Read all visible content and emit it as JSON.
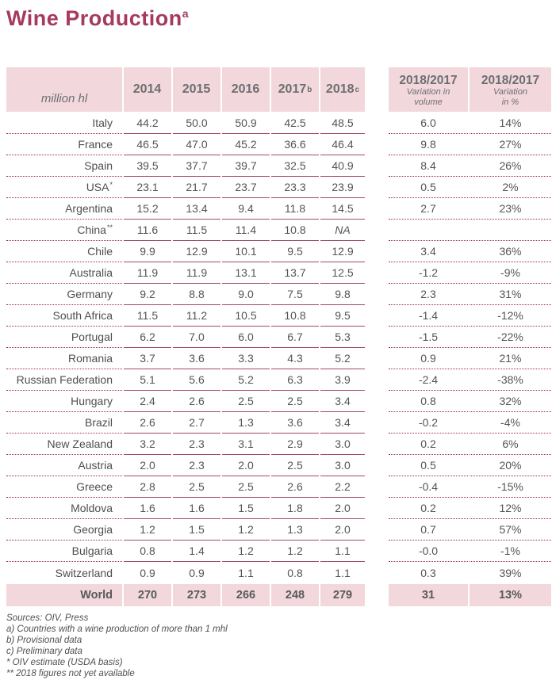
{
  "title": {
    "text": "Wine Production",
    "sup": "a"
  },
  "colors": {
    "accent": "#a53a5e",
    "header-bg": "#f2d8dd",
    "solid-line": "#a14a66",
    "dotted-line": "#9b2c55",
    "muted": "#6d6e71",
    "text": "#545456"
  },
  "table": {
    "unit_label": "million hl",
    "year_columns": [
      {
        "label": "2014",
        "sup": ""
      },
      {
        "label": "2015",
        "sup": ""
      },
      {
        "label": "2016",
        "sup": ""
      },
      {
        "label": "2017",
        "sup": "b"
      },
      {
        "label": "2018",
        "sup": "c"
      }
    ],
    "variation_columns": [
      {
        "l1": "2018/2017",
        "l2": "Variation in",
        "l3": "volume"
      },
      {
        "l1": "2018/2017",
        "l2": "Variation",
        "l3": "in %"
      }
    ],
    "rows": [
      {
        "country": "Italy",
        "sup": "",
        "values": [
          "44.2",
          "50.0",
          "50.9",
          "42.5",
          "48.5"
        ],
        "var_volume": "6.0",
        "var_pct": "14%"
      },
      {
        "country": "France",
        "sup": "",
        "values": [
          "46.5",
          "47.0",
          "45.2",
          "36.6",
          "46.4"
        ],
        "var_volume": "9.8",
        "var_pct": "27%"
      },
      {
        "country": "Spain",
        "sup": "",
        "values": [
          "39.5",
          "37.7",
          "39.7",
          "32.5",
          "40.9"
        ],
        "var_volume": "8.4",
        "var_pct": "26%"
      },
      {
        "country": "USA",
        "sup": "*",
        "values": [
          "23.1",
          "21.7",
          "23.7",
          "23.3",
          "23.9"
        ],
        "var_volume": "0.5",
        "var_pct": "2%"
      },
      {
        "country": "Argentina",
        "sup": "",
        "values": [
          "15.2",
          "13.4",
          "9.4",
          "11.8",
          "14.5"
        ],
        "var_volume": "2.7",
        "var_pct": "23%"
      },
      {
        "country": "China",
        "sup": "**",
        "values": [
          "11.6",
          "11.5",
          "11.4",
          "10.8",
          "NA"
        ],
        "var_volume": "",
        "var_pct": ""
      },
      {
        "country": "Chile",
        "sup": "",
        "values": [
          "9.9",
          "12.9",
          "10.1",
          "9.5",
          "12.9"
        ],
        "var_volume": "3.4",
        "var_pct": "36%"
      },
      {
        "country": "Australia",
        "sup": "",
        "values": [
          "11.9",
          "11.9",
          "13.1",
          "13.7",
          "12.5"
        ],
        "var_volume": "-1.2",
        "var_pct": "-9%"
      },
      {
        "country": "Germany",
        "sup": "",
        "values": [
          "9.2",
          "8.8",
          "9.0",
          "7.5",
          "9.8"
        ],
        "var_volume": "2.3",
        "var_pct": "31%"
      },
      {
        "country": "South Africa",
        "sup": "",
        "values": [
          "11.5",
          "11.2",
          "10.5",
          "10.8",
          "9.5"
        ],
        "var_volume": "-1.4",
        "var_pct": "-12%"
      },
      {
        "country": "Portugal",
        "sup": "",
        "values": [
          "6.2",
          "7.0",
          "6.0",
          "6.7",
          "5.3"
        ],
        "var_volume": "-1.5",
        "var_pct": "-22%"
      },
      {
        "country": "Romania",
        "sup": "",
        "values": [
          "3.7",
          "3.6",
          "3.3",
          "4.3",
          "5.2"
        ],
        "var_volume": "0.9",
        "var_pct": "21%"
      },
      {
        "country": "Russian Federation",
        "sup": "",
        "values": [
          "5.1",
          "5.6",
          "5.2",
          "6.3",
          "3.9"
        ],
        "var_volume": "-2.4",
        "var_pct": "-38%"
      },
      {
        "country": "Hungary",
        "sup": "",
        "values": [
          "2.4",
          "2.6",
          "2.5",
          "2.5",
          "3.4"
        ],
        "var_volume": "0.8",
        "var_pct": "32%"
      },
      {
        "country": "Brazil",
        "sup": "",
        "values": [
          "2.6",
          "2.7",
          "1.3",
          "3.6",
          "3.4"
        ],
        "var_volume": "-0.2",
        "var_pct": "-4%"
      },
      {
        "country": "New Zealand",
        "sup": "",
        "values": [
          "3.2",
          "2.3",
          "3.1",
          "2.9",
          "3.0"
        ],
        "var_volume": "0.2",
        "var_pct": "6%"
      },
      {
        "country": "Austria",
        "sup": "",
        "values": [
          "2.0",
          "2.3",
          "2.0",
          "2.5",
          "3.0"
        ],
        "var_volume": "0.5",
        "var_pct": "20%"
      },
      {
        "country": "Greece",
        "sup": "",
        "values": [
          "2.8",
          "2.5",
          "2.5",
          "2.6",
          "2.2"
        ],
        "var_volume": "-0.4",
        "var_pct": "-15%"
      },
      {
        "country": "Moldova",
        "sup": "",
        "values": [
          "1.6",
          "1.6",
          "1.5",
          "1.8",
          "2.0"
        ],
        "var_volume": "0.2",
        "var_pct": "12%"
      },
      {
        "country": "Georgia",
        "sup": "",
        "values": [
          "1.2",
          "1.5",
          "1.2",
          "1.3",
          "2.0"
        ],
        "var_volume": "0.7",
        "var_pct": "57%"
      },
      {
        "country": "Bulgaria",
        "sup": "",
        "values": [
          "0.8",
          "1.4",
          "1.2",
          "1.2",
          "1.1"
        ],
        "var_volume": "-0.0",
        "var_pct": "-1%"
      },
      {
        "country": "Switzerland",
        "sup": "",
        "values": [
          "0.9",
          "0.9",
          "1.1",
          "0.8",
          "1.1"
        ],
        "var_volume": "0.3",
        "var_pct": "39%"
      }
    ],
    "world_row": {
      "country": "World",
      "values": [
        "270",
        "273",
        "266",
        "248",
        "279"
      ],
      "var_volume": "31",
      "var_pct": "13%"
    }
  },
  "footnotes": [
    "Sources: OIV, Press",
    "a) Countries  with a wine production of more than 1 mhl",
    "b) Provisional data",
    "c) Preliminary data",
    "* OIV estimate (USDA basis)",
    "** 2018 figures not yet available"
  ],
  "chart_data": {
    "type": "table",
    "title": "Wine Production (a)",
    "unit": "million hl",
    "columns": [
      "Country",
      "2014",
      "2015",
      "2016",
      "2017 (b)",
      "2018 (c)",
      "2018/2017 Variation in volume",
      "2018/2017 Variation in %"
    ],
    "rows": [
      [
        "Italy",
        44.2,
        50.0,
        50.9,
        42.5,
        48.5,
        6.0,
        "14%"
      ],
      [
        "France",
        46.5,
        47.0,
        45.2,
        36.6,
        46.4,
        9.8,
        "27%"
      ],
      [
        "Spain",
        39.5,
        37.7,
        39.7,
        32.5,
        40.9,
        8.4,
        "26%"
      ],
      [
        "USA *",
        23.1,
        21.7,
        23.7,
        23.3,
        23.9,
        0.5,
        "2%"
      ],
      [
        "Argentina",
        15.2,
        13.4,
        9.4,
        11.8,
        14.5,
        2.7,
        "23%"
      ],
      [
        "China **",
        11.6,
        11.5,
        11.4,
        10.8,
        "NA",
        null,
        null
      ],
      [
        "Chile",
        9.9,
        12.9,
        10.1,
        9.5,
        12.9,
        3.4,
        "36%"
      ],
      [
        "Australia",
        11.9,
        11.9,
        13.1,
        13.7,
        12.5,
        -1.2,
        "-9%"
      ],
      [
        "Germany",
        9.2,
        8.8,
        9.0,
        7.5,
        9.8,
        2.3,
        "31%"
      ],
      [
        "South Africa",
        11.5,
        11.2,
        10.5,
        10.8,
        9.5,
        -1.4,
        "-12%"
      ],
      [
        "Portugal",
        6.2,
        7.0,
        6.0,
        6.7,
        5.3,
        -1.5,
        "-22%"
      ],
      [
        "Romania",
        3.7,
        3.6,
        3.3,
        4.3,
        5.2,
        0.9,
        "21%"
      ],
      [
        "Russian Federation",
        5.1,
        5.6,
        5.2,
        6.3,
        3.9,
        -2.4,
        "-38%"
      ],
      [
        "Hungary",
        2.4,
        2.6,
        2.5,
        2.5,
        3.4,
        0.8,
        "32%"
      ],
      [
        "Brazil",
        2.6,
        2.7,
        1.3,
        3.6,
        3.4,
        -0.2,
        "-4%"
      ],
      [
        "New Zealand",
        3.2,
        2.3,
        3.1,
        2.9,
        3.0,
        0.2,
        "6%"
      ],
      [
        "Austria",
        2.0,
        2.3,
        2.0,
        2.5,
        3.0,
        0.5,
        "20%"
      ],
      [
        "Greece",
        2.8,
        2.5,
        2.5,
        2.6,
        2.2,
        -0.4,
        "-15%"
      ],
      [
        "Moldova",
        1.6,
        1.6,
        1.5,
        1.8,
        2.0,
        0.2,
        "12%"
      ],
      [
        "Georgia",
        1.2,
        1.5,
        1.2,
        1.3,
        2.0,
        0.7,
        "57%"
      ],
      [
        "Bulgaria",
        0.8,
        1.4,
        1.2,
        1.2,
        1.1,
        "-0.0",
        "-1%"
      ],
      [
        "Switzerland",
        0.9,
        0.9,
        1.1,
        0.8,
        1.1,
        0.3,
        "39%"
      ],
      [
        "World",
        270,
        273,
        266,
        248,
        279,
        31,
        "13%"
      ]
    ]
  }
}
